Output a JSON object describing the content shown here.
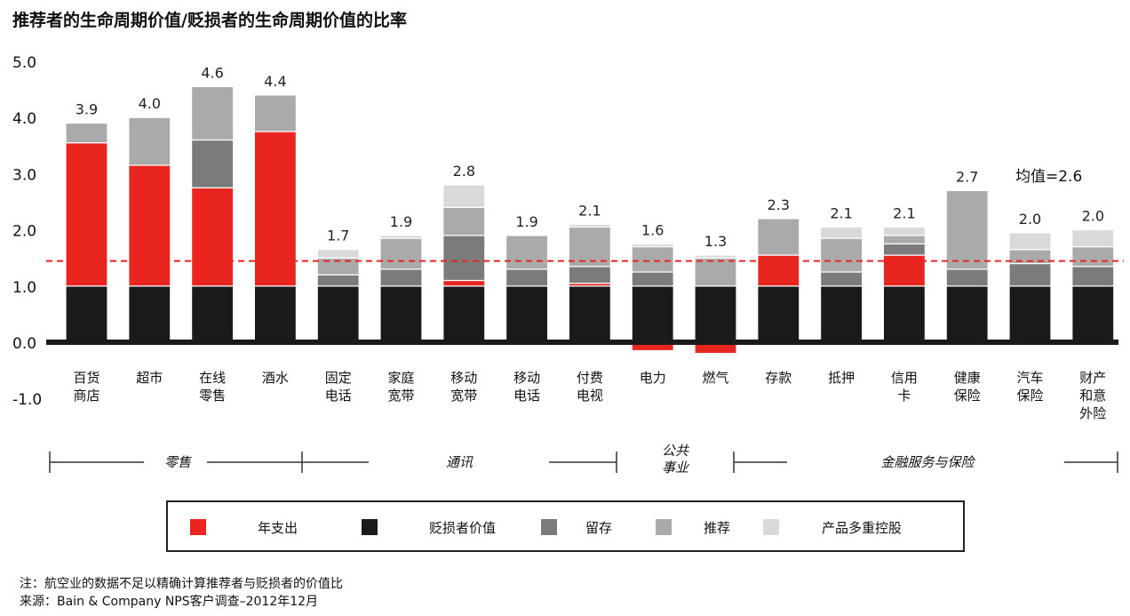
{
  "chart_data": {
    "type": "bar",
    "stacked": true,
    "title": "推荐者的生命周期价值/贬损者的生命周期价值的比率",
    "ylim": [
      -1.0,
      5.0
    ],
    "yticks": [
      "5.0",
      "4.0",
      "3.0",
      "2.0",
      "1.0",
      "0.0",
      "-1.0"
    ],
    "ytick_values": [
      5,
      4,
      3,
      2,
      1,
      0,
      -1
    ],
    "average_value": 2.6,
    "average_label": "均值=2.6",
    "categories": [
      [
        "百货",
        "商店"
      ],
      [
        "超市"
      ],
      [
        "在线",
        "零售"
      ],
      [
        "酒水"
      ],
      [
        "固定",
        "电话"
      ],
      [
        "家庭",
        "宽带"
      ],
      [
        "移动",
        "宽带"
      ],
      [
        "移动",
        "电话"
      ],
      [
        "付费",
        "电视"
      ],
      [
        "电力"
      ],
      [
        "燃气"
      ],
      [
        "存款"
      ],
      [
        "抵押"
      ],
      [
        "信用",
        "卡"
      ],
      [
        "健康",
        "保险"
      ],
      [
        "汽车",
        "保险"
      ],
      [
        "财产",
        "和意",
        "外险"
      ]
    ],
    "totals": [
      "3.9",
      "4.0",
      "4.6",
      "4.4",
      "1.7",
      "1.9",
      "2.8",
      "1.9",
      "2.1",
      "1.6",
      "1.3",
      "2.3",
      "2.1",
      "2.1",
      "2.7",
      "2.0",
      "2.0"
    ],
    "series": [
      {
        "name": "贬损者价值",
        "color": "#1a1a1a",
        "values": [
          1.0,
          1.0,
          1.0,
          1.0,
          1.0,
          1.0,
          1.0,
          1.0,
          1.0,
          1.0,
          1.0,
          1.0,
          1.0,
          1.0,
          1.0,
          1.0,
          1.0
        ]
      },
      {
        "name": "年支出",
        "color": "#e8261f",
        "values": [
          2.55,
          2.15,
          1.75,
          2.75,
          0,
          0,
          0.1,
          0,
          0.05,
          -0.15,
          -0.2,
          0.55,
          0,
          0.55,
          0,
          0,
          0
        ]
      },
      {
        "name": "留存",
        "color": "#7b7b7b",
        "values": [
          0,
          0,
          0.85,
          0,
          0.2,
          0.3,
          0.8,
          0.3,
          0.3,
          0.25,
          0,
          0,
          0.25,
          0.2,
          0.3,
          0.4,
          0.35
        ]
      },
      {
        "name": "推荐",
        "color": "#aaaaaa",
        "values": [
          0.35,
          0.85,
          0.95,
          0.65,
          0.3,
          0.55,
          0.5,
          0.6,
          0.7,
          0.45,
          0.5,
          0.65,
          0.6,
          0.15,
          1.4,
          0.25,
          0.35
        ]
      },
      {
        "name": "产品多重控股",
        "color": "#d9d9d9",
        "values": [
          0,
          0,
          0,
          0,
          0.15,
          0.05,
          0.4,
          0,
          0.05,
          0.05,
          0.05,
          0,
          0.2,
          0.15,
          0,
          0.3,
          0.3
        ]
      }
    ],
    "groups": [
      {
        "label": "零售",
        "from": 0,
        "to": 3
      },
      {
        "label": "通讯",
        "from": 4,
        "to": 8
      },
      {
        "label": "公共\n事业",
        "from": 9,
        "to": 10
      },
      {
        "label": "金融服务与保险",
        "from": 11,
        "to": 16
      }
    ],
    "group_labels_lines": {
      "utilities": [
        "公共",
        "事业"
      ]
    }
  },
  "legend": [
    {
      "label": "年支出",
      "color": "#e8261f"
    },
    {
      "label": "贬损者价值",
      "color": "#1a1a1a"
    },
    {
      "label": "留存",
      "color": "#7b7b7b"
    },
    {
      "label": "推荐",
      "color": "#aaaaaa"
    },
    {
      "label": "产品多重控股",
      "color": "#d9d9d9"
    }
  ],
  "notes": {
    "note": "注：航空业的数据不足以精确计算推荐者与贬损者的价值比",
    "source": "来源：Bain & Company NPS客户调查–2012年12月"
  }
}
